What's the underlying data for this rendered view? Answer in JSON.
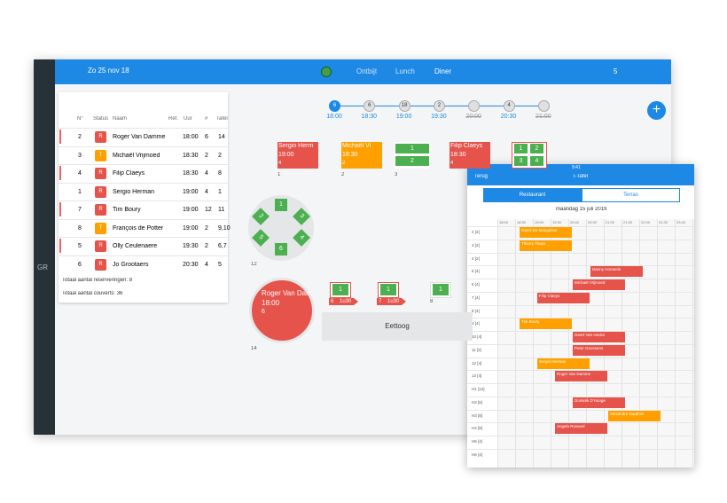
{
  "header": {
    "date": "Zo 25 nov 18",
    "meals": [
      "Ontbijt",
      "Lunch",
      "Diner"
    ],
    "count": "5"
  },
  "sidebar": {
    "initials": "GR"
  },
  "list": {
    "columns": [
      "N°",
      "Status",
      "Naam",
      "Ref.",
      "Uur",
      "#",
      "Tafel"
    ],
    "rows": [
      {
        "n": "2",
        "status": "R",
        "name": "Roger Van Damme",
        "time": "18:00",
        "covers": "6",
        "table": "14"
      },
      {
        "n": "3",
        "status": "T",
        "name": "Michaël Vrijmoed",
        "time": "18:30",
        "covers": "2",
        "table": "2"
      },
      {
        "n": "4",
        "status": "R",
        "name": "Filip Claeys",
        "time": "18:30",
        "covers": "4",
        "table": "8"
      },
      {
        "n": "1",
        "status": "R",
        "name": "Sergio Herman",
        "time": "19:00",
        "covers": "4",
        "table": "1"
      },
      {
        "n": "7",
        "status": "R",
        "name": "Tim Boury",
        "time": "19:00",
        "covers": "12",
        "table": "11"
      },
      {
        "n": "8",
        "status": "T",
        "name": "François de Potter",
        "time": "19:00",
        "covers": "2",
        "table": "9,10"
      },
      {
        "n": "5",
        "status": "R",
        "name": "Olly Ceulenaere",
        "time": "19:30",
        "covers": "2",
        "table": "6,7"
      },
      {
        "n": "6",
        "status": "R",
        "name": "Jo Grootaers",
        "time": "20:30",
        "covers": "4",
        "table": "5"
      }
    ],
    "total_reservations": "Totaal aantal reserveringen: 8",
    "total_covers": "Totaal aantal couverts: 36"
  },
  "timeline": [
    {
      "count": "6",
      "time": "18:00"
    },
    {
      "count": "6",
      "time": "18:30"
    },
    {
      "count": "18",
      "time": "19:00"
    },
    {
      "count": "2",
      "time": "19:30"
    },
    {
      "time": "20:00"
    },
    {
      "count": "4",
      "time": "20:30"
    },
    {
      "time": "21:00"
    }
  ],
  "floor": {
    "tables": [
      {
        "label": "1",
        "name": "Sergio Herm",
        "time": "19:00",
        "covers": "4"
      },
      {
        "label": "2",
        "name": "Michaël Vi",
        "time": "18:30",
        "covers": "2"
      },
      {
        "label": "3",
        "seats": [
          "1",
          "2"
        ]
      },
      {
        "name": "Filip Claeys",
        "time": "18:30",
        "covers": "4"
      },
      {
        "seats": [
          "1",
          "2",
          "3",
          "4"
        ]
      }
    ],
    "round_table": {
      "label": "12",
      "seats": [
        "1",
        "2",
        "3",
        "4",
        "5",
        "6"
      ]
    },
    "round_reserved": {
      "label": "14",
      "name": "Roger Van Dam",
      "time": "18:00",
      "covers": "6"
    },
    "small_tables": [
      {
        "seat": "1",
        "tag": "6",
        "duration": "1u30"
      },
      {
        "seat": "1",
        "tag": "7",
        "duration": "1u30"
      },
      {
        "seat": "1",
        "label": "8"
      }
    ],
    "bar": "Eettoog"
  },
  "tablet": {
    "clock": "9:41",
    "back": "Terug",
    "title": "i-Tafel",
    "tabs": [
      "Restaurant",
      "Terras"
    ],
    "date": "maandag 15 juli 2019",
    "times": [
      "18:00",
      "18:30",
      "19:00",
      "19:30",
      "20:00",
      "20:30",
      "21:00",
      "21:30",
      "22:00",
      "22:30",
      "23:00",
      "23:30"
    ],
    "rows": [
      "2 [2]",
      "3 [2]",
      "4 [2]",
      "5 [4]",
      "6 [4]",
      "7 [4]",
      "8 [4]",
      "9 [4]",
      "10 [4]",
      "11 [2]",
      "12 [4]",
      "13 [4]",
      "H1 [12]",
      "H2 [6]",
      "H3 [8]",
      "H4 [8]",
      "H5 [4]",
      "H6 [4]"
    ],
    "bookings": [
      "Geert De Mangeleer",
      "Thierry Theys",
      "Danny Horseele",
      "Michaël Vrijmoed",
      "Filip Claeys",
      "Tim Boury",
      "Geert Van Hecke",
      "Peter Goossens",
      "Sergio Herman",
      "Roger Van Damme",
      "Dominik D'Hooge",
      "Alexandre Gauthier",
      "Angelo Rosseel"
    ]
  }
}
